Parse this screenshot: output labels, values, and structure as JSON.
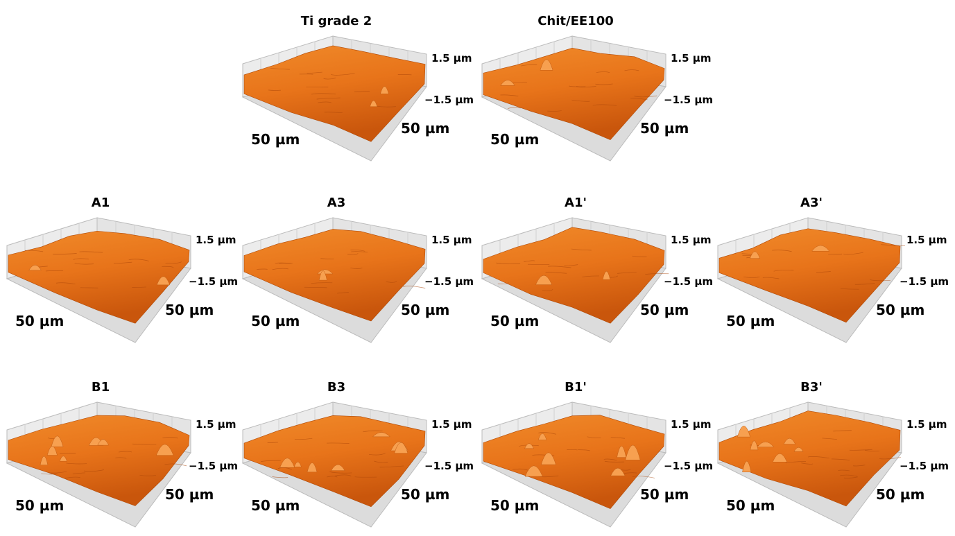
{
  "panels": [
    {
      "title": "Ti grade 2",
      "z_max": "1.5 µm",
      "z_min": "−1.5 µm",
      "x_label": "50 µm",
      "y_label": "50 µm"
    },
    {
      "title": "Chit/EE100",
      "z_max": "1.5 µm",
      "z_min": "−1.5 µm",
      "x_label": "50 µm",
      "y_label": "50 µm"
    },
    {
      "title": "A1",
      "z_max": "1.5 µm",
      "z_min": "−1.5 µm",
      "x_label": "50 µm",
      "y_label": "50 µm"
    },
    {
      "title": "A3",
      "z_max": "1.5 µm",
      "z_min": "−1.5 µm",
      "x_label": "50 µm",
      "y_label": "50 µm"
    },
    {
      "title": "A1'",
      "z_max": "1.5 µm",
      "z_min": "−1.5 µm",
      "x_label": "50 µm",
      "y_label": "50 µm"
    },
    {
      "title": "A3'",
      "z_max": "1.5 µm",
      "z_min": "−1.5 µm",
      "x_label": "50 µm",
      "y_label": "50 µm"
    },
    {
      "title": "B1",
      "z_max": "1.5 µm",
      "z_min": "−1.5 µm",
      "x_label": "50 µm",
      "y_label": "50 µm"
    },
    {
      "title": "B3",
      "z_max": "1.5 µm",
      "z_min": "−1.5 µm",
      "x_label": "50 µm",
      "y_label": "50 µm"
    },
    {
      "title": "B1'",
      "z_max": "1.5 µm",
      "z_min": "−1.5 µm",
      "x_label": "50 µm",
      "y_label": "50 µm"
    },
    {
      "title": "B3'",
      "z_max": "1.5 µm",
      "z_min": "−1.5 µm",
      "x_label": "50 µm",
      "y_label": "50 µm"
    }
  ]
}
